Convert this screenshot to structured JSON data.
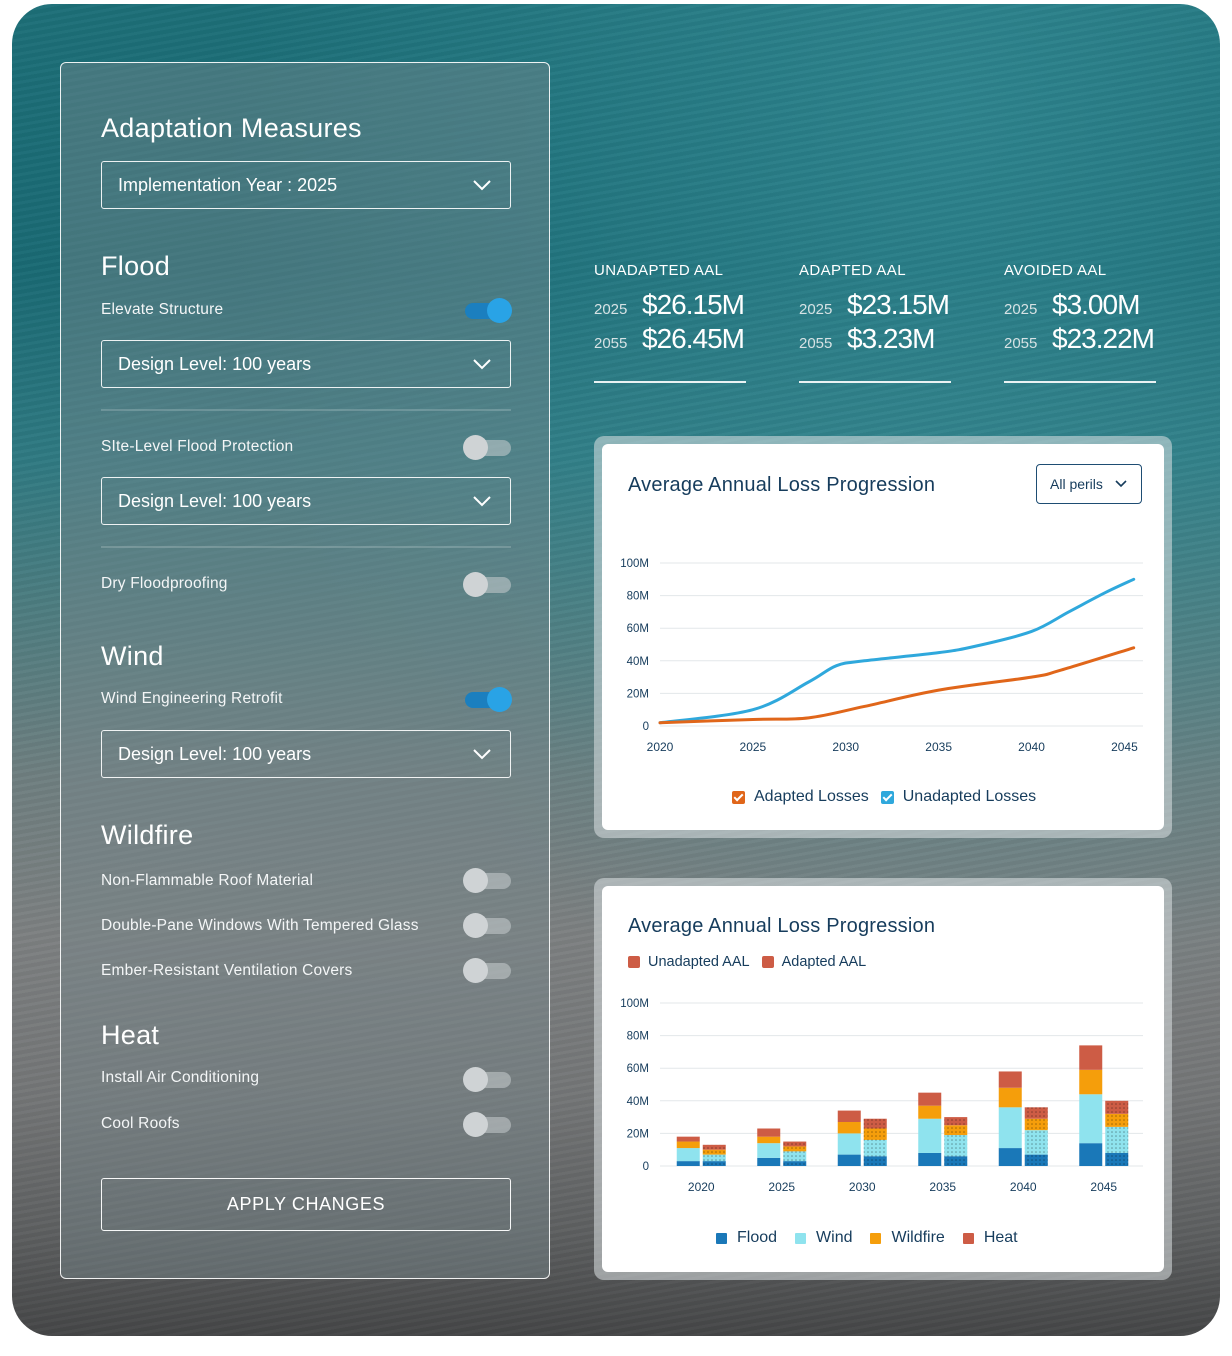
{
  "panel": {
    "title": "Adaptation Measures",
    "implementation_select": "Implementation Year : 2025",
    "apply_label": "APPLY CHANGES",
    "sections": {
      "flood": {
        "heading": "Flood",
        "elevate": {
          "label": "Elevate Structure",
          "on": true,
          "select": "Design Level: 100 years"
        },
        "site": {
          "label": "SIte-Level Flood Protection",
          "on": false,
          "select": "Design Level: 100 years"
        },
        "dry": {
          "label": "Dry Floodproofing",
          "on": false
        }
      },
      "wind": {
        "heading": "Wind",
        "retrofit": {
          "label": "Wind Engineering Retrofit",
          "on": true,
          "select": "Design Level: 100 years"
        }
      },
      "wildfire": {
        "heading": "Wildfire",
        "roof": {
          "label": "Non-Flammable Roof Material",
          "on": false
        },
        "windows": {
          "label": "Double-Pane Windows With Tempered Glass",
          "on": false
        },
        "vents": {
          "label": "Ember-Resistant Ventilation Covers",
          "on": false
        }
      },
      "heat": {
        "heading": "Heat",
        "ac": {
          "label": "Install Air Conditioning",
          "on": false
        },
        "roofs": {
          "label": "Cool Roofs",
          "on": false
        }
      }
    }
  },
  "kpis": [
    {
      "title": "UNADAPTED AAL",
      "year_a": "2025",
      "value_a": "$26.15M",
      "year_b": "2055",
      "value_b": "$26.45M"
    },
    {
      "title": "ADAPTED AAL",
      "year_a": "2025",
      "value_a": "$23.15M",
      "year_b": "2055",
      "value_b": "$3.23M"
    },
    {
      "title": "AVOIDED AAL",
      "year_a": "2025",
      "value_a": "$3.00M",
      "year_b": "2055",
      "value_b": "$23.22M"
    }
  ],
  "colors": {
    "adapted": "#e0661a",
    "unadapted": "#2fa8dc",
    "flood": "#1a78b8",
    "wind": "#8fe3ee",
    "wildfire": "#f59e0b",
    "heat": "#cd5c45",
    "text_dark": "#163c5c"
  },
  "line_card": {
    "title": "Average Annual Loss Progression",
    "perils_select": "All perils",
    "legend": [
      "Adapted Losses",
      "Unadapted Losses"
    ]
  },
  "bar_card": {
    "title": "Average Annual Loss Progression",
    "top_legend": [
      "Unadapted AAL",
      "Adapted AAL"
    ],
    "bottom_legend": [
      "Flood",
      "Wind",
      "Wildfire",
      "Heat"
    ]
  },
  "chart_data": [
    {
      "type": "line",
      "title": "Average Annual Loss Progression",
      "xlim": [
        2020,
        2046
      ],
      "ylim": [
        0,
        100
      ],
      "yticks": [
        "0",
        "20M",
        "40M",
        "60M",
        "80M",
        "100M"
      ],
      "ytick_values": [
        0,
        20,
        40,
        60,
        80,
        100
      ],
      "xticks": [
        2020,
        2025,
        2030,
        2035,
        2040,
        2045
      ],
      "grid": true,
      "legend_position": "bottom",
      "series": [
        {
          "name": "Unadapted Losses",
          "x": [
            2020,
            2025,
            2028,
            2029.5,
            2031,
            2035,
            2037,
            2040,
            2042,
            2044,
            2045.5
          ],
          "y": [
            2,
            10,
            27,
            37,
            40,
            45,
            49,
            58,
            70,
            82,
            90
          ]
        },
        {
          "name": "Adapted Losses",
          "x": [
            2020,
            2025,
            2028,
            2031,
            2035,
            2040,
            2041.5,
            2045.5
          ],
          "y": [
            2,
            4,
            5,
            12,
            22,
            30,
            34,
            48
          ]
        }
      ]
    },
    {
      "type": "bar",
      "title": "Average Annual Loss Progression",
      "categories": [
        "2020",
        "2025",
        "2030",
        "2035",
        "2040",
        "2045"
      ],
      "ylim": [
        0,
        100
      ],
      "yticks": [
        "0",
        "20M",
        "40M",
        "60M",
        "80M",
        "100M"
      ],
      "ytick_values": [
        0,
        20,
        40,
        60,
        80,
        100
      ],
      "grid": true,
      "stacked": true,
      "stack_order": [
        "Flood",
        "Wind",
        "Wildfire",
        "Heat"
      ],
      "groups": [
        {
          "name": "Unadapted AAL",
          "series": [
            {
              "name": "Flood",
              "values": [
                3,
                5,
                7,
                8,
                11,
                14
              ]
            },
            {
              "name": "Wind",
              "values": [
                8,
                9,
                13,
                21,
                25,
                30
              ]
            },
            {
              "name": "Wildfire",
              "values": [
                4,
                4,
                7,
                8,
                12,
                15
              ]
            },
            {
              "name": "Heat",
              "values": [
                3,
                5,
                7,
                8,
                10,
                15
              ]
            }
          ]
        },
        {
          "name": "Adapted AAL",
          "series": [
            {
              "name": "Flood",
              "values": [
                3,
                3,
                6,
                6,
                7,
                8
              ]
            },
            {
              "name": "Wind",
              "values": [
                4,
                6,
                10,
                13,
                15,
                16
              ]
            },
            {
              "name": "Wildfire",
              "values": [
                3,
                3,
                7,
                6,
                7,
                8
              ]
            },
            {
              "name": "Heat",
              "values": [
                3,
                3,
                6,
                5,
                7,
                8
              ]
            }
          ]
        }
      ]
    }
  ]
}
